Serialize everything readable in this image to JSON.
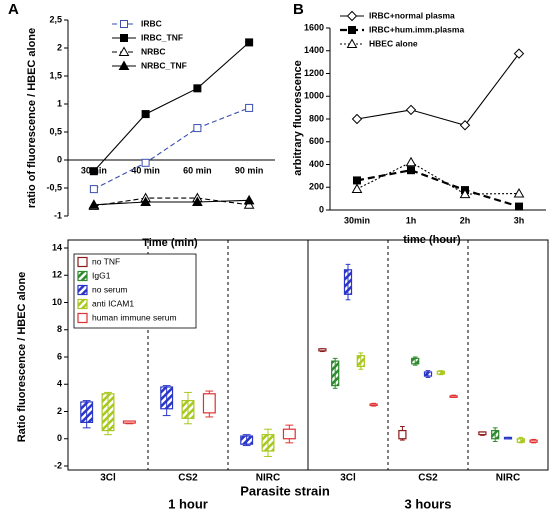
{
  "chart_data": [
    {
      "type": "line",
      "panel_label": "A",
      "y_label": "ratio of fluorescence / HBEC alone",
      "x_label": "Time (min)",
      "categories": [
        "30min",
        "40 min",
        "60 min",
        "90 min"
      ],
      "ylim": [
        -1,
        2.5
      ],
      "yticks": [
        {
          "value": 2.5,
          "label": "2,5"
        },
        2,
        {
          "value": 1.5,
          "label": "1,5"
        },
        1,
        {
          "value": 0.5,
          "label": "0,5"
        },
        0,
        {
          "value": -0.5,
          "label": "-0,5"
        },
        -1
      ],
      "series": [
        {
          "name": "IRBC",
          "color": "#3a4fb0",
          "marker": "square-open",
          "dash": "dashed",
          "values": [
            -0.52,
            -0.05,
            0.57,
            0.93
          ]
        },
        {
          "name": "IRBC_TNF",
          "color": "#000000",
          "marker": "square",
          "dash": "solid",
          "values": [
            -0.2,
            0.82,
            1.28,
            2.1
          ]
        },
        {
          "name": "NRBC",
          "color": "#000000",
          "marker": "triangle-open",
          "dash": "dashed",
          "values": [
            -0.82,
            -0.68,
            -0.68,
            -0.8
          ]
        },
        {
          "name": "NRBC_TNF",
          "color": "#000000",
          "marker": "triangle",
          "dash": "solid",
          "values": [
            -0.8,
            -0.75,
            -0.75,
            -0.72
          ]
        }
      ]
    },
    {
      "type": "line",
      "panel_label": "B",
      "y_label": "arbitrary fluorescence",
      "x_label": "time (hour)",
      "categories": [
        "30min",
        "1h",
        "2h",
        "3h"
      ],
      "ylim": [
        0,
        1600
      ],
      "yticks": [
        0,
        200,
        400,
        600,
        800,
        1000,
        1200,
        1400,
        1600
      ],
      "series": [
        {
          "name": "IRBC+normal plasma",
          "color": "#000000",
          "marker": "diamond-open",
          "dash": "solid",
          "values": [
            800,
            880,
            745,
            1375
          ]
        },
        {
          "name": "IRBC+hum.imm.plasma",
          "color": "#000000",
          "marker": "square",
          "dash": "bold-dashed",
          "values": [
            260,
            350,
            175,
            30
          ]
        },
        {
          "name": "HBEC alone",
          "color": "#000000",
          "marker": "triangle-open",
          "dash": "dotted",
          "values": [
            185,
            420,
            140,
            145
          ]
        }
      ]
    },
    {
      "type": "box",
      "y_label": "Ratio fluorescence / HBEC alone",
      "x_label": "Parasite strain",
      "groups": [
        "1 hour",
        "3 hours"
      ],
      "categories": [
        "3Cl",
        "CS2",
        "NIRC",
        "3Cl",
        "CS2",
        "NIRC"
      ],
      "ylim": [
        -2,
        14
      ],
      "yticks": [
        -2,
        0,
        2,
        4,
        6,
        8,
        10,
        12,
        14
      ],
      "series": [
        {
          "name": "no TNF",
          "color": "#8b1a1a",
          "hatched": false,
          "low": [
            null,
            null,
            null,
            6.4,
            -0.1,
            0.25
          ],
          "q1": [
            null,
            null,
            null,
            6.45,
            0.0,
            0.3
          ],
          "q3": [
            null,
            null,
            null,
            6.6,
            0.6,
            0.5
          ],
          "high": [
            null,
            null,
            null,
            6.6,
            0.9,
            0.5
          ]
        },
        {
          "name": "IgG1",
          "color": "#2e8b2e",
          "hatched": true,
          "low": [
            null,
            null,
            null,
            3.7,
            5.4,
            -0.2
          ],
          "q1": [
            null,
            null,
            null,
            3.9,
            5.5,
            0.0
          ],
          "q3": [
            null,
            null,
            null,
            5.7,
            5.9,
            0.6
          ],
          "high": [
            null,
            null,
            null,
            5.9,
            6.0,
            0.8
          ]
        },
        {
          "name": "no serum",
          "color": "#2a36c8",
          "hatched": true,
          "low": [
            0.8,
            1.7,
            -0.5,
            10.2,
            4.5,
            0.0
          ],
          "q1": [
            1.2,
            2.2,
            -0.4,
            10.6,
            4.6,
            0.0
          ],
          "q3": [
            2.7,
            3.8,
            0.2,
            12.4,
            4.9,
            0.1
          ],
          "high": [
            2.8,
            3.9,
            0.3,
            12.8,
            5.0,
            0.1
          ]
        },
        {
          "name": "anti ICAM1",
          "color": "#a8c820",
          "hatched": true,
          "low": [
            0.3,
            1.1,
            -1.3,
            5.1,
            4.7,
            -0.3
          ],
          "q1": [
            0.6,
            1.5,
            -0.9,
            5.3,
            4.75,
            -0.25
          ],
          "q3": [
            3.3,
            2.8,
            0.3,
            6.1,
            4.95,
            0.0
          ],
          "high": [
            3.4,
            3.4,
            0.7,
            6.3,
            5.0,
            0.1
          ]
        },
        {
          "name": "human immune serum",
          "color": "#e03030",
          "hatched": false,
          "low": [
            1.1,
            1.6,
            -0.3,
            2.4,
            3.05,
            -0.3
          ],
          "q1": [
            1.15,
            1.9,
            0.0,
            2.45,
            3.1,
            -0.25
          ],
          "q3": [
            1.3,
            3.3,
            0.7,
            2.55,
            3.15,
            -0.1
          ],
          "high": [
            1.3,
            3.5,
            1.0,
            2.6,
            3.2,
            -0.05
          ]
        }
      ]
    }
  ]
}
